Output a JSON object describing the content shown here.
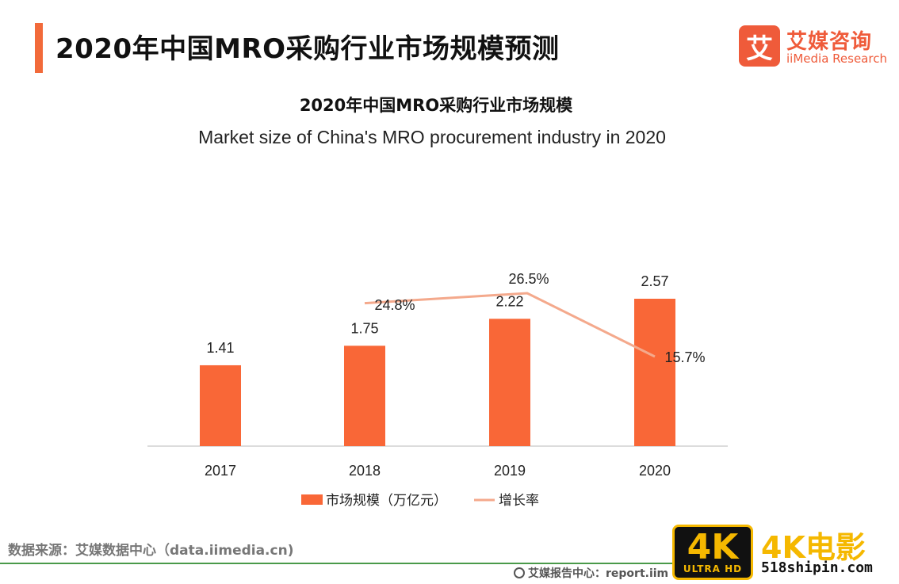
{
  "header": {
    "title": "2020年中国MRO采购行业市场规模预测"
  },
  "logo": {
    "mark": "艾",
    "name_cn": "艾媒咨询",
    "name_en": "iiMedia Research"
  },
  "colors": {
    "accent": "#f26a3a",
    "bar": "#f96737",
    "line": "#f4a98c",
    "axis": "#d0d0d0"
  },
  "chart_data": {
    "type": "bar",
    "title": "2020年中国MRO采购行业市场规模",
    "subtitle": "Market size of China's MRO procurement industry in 2020",
    "categories": [
      "2017",
      "2018",
      "2019",
      "2020"
    ],
    "series": [
      {
        "name": "市场规模（万亿元）",
        "type": "bar",
        "values": [
          1.41,
          1.75,
          2.22,
          2.57
        ],
        "labels": [
          "1.41",
          "1.75",
          "2.22",
          "2.57"
        ]
      },
      {
        "name": "增长率",
        "type": "line",
        "values": [
          null,
          24.8,
          26.5,
          15.7
        ],
        "labels": [
          "",
          "24.8%",
          "26.5%",
          "15.7%"
        ]
      }
    ],
    "ylim_bar": [
      0,
      2.57
    ],
    "ylim_line": [
      0,
      30
    ],
    "legend_position": "bottom"
  },
  "footer": {
    "source": "数据来源：艾媒数据中心（data.iimedia.cn)",
    "report": "艾媒报告中心：report.iim"
  },
  "watermark": {
    "badge": "4K",
    "badge_sub": "ULTRA HD",
    "brand": "4K电影",
    "url": "518shipin.com"
  }
}
